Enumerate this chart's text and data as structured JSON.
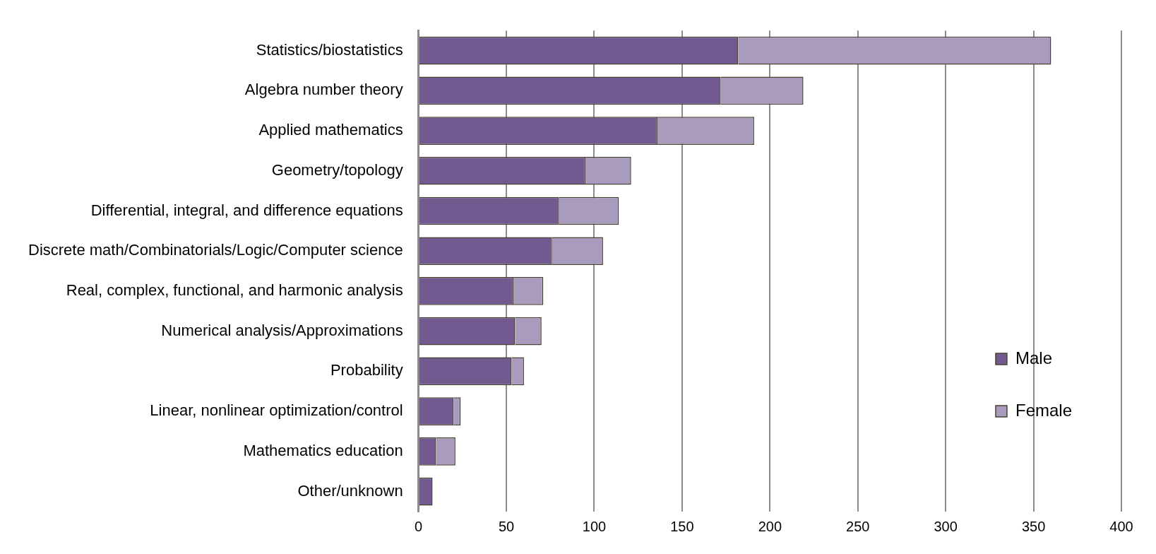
{
  "chart_data": {
    "type": "bar",
    "orientation": "horizontal",
    "stacked": true,
    "categories": [
      "Statistics/biostatistics",
      "Algebra number theory",
      "Applied mathematics",
      "Geometry/topology",
      "Differential, integral, and difference equations",
      "Discrete math/Combinatorials/Logic/Computer science",
      "Real, complex, functional, and harmonic analysis",
      "Numerical analysis/Approximations",
      "Probability",
      "Linear, nonlinear optimization/control",
      "Mathematics education",
      "Other/unknown"
    ],
    "series": [
      {
        "name": "Male",
        "color": "#725990",
        "values": [
          182,
          172,
          136,
          95,
          80,
          76,
          54,
          55,
          53,
          20,
          10,
          8
        ]
      },
      {
        "name": "Female",
        "color": "#a99bbd",
        "values": [
          178,
          47,
          55,
          26,
          34,
          29,
          17,
          15,
          7,
          4,
          11,
          0
        ]
      }
    ],
    "xlim": [
      0,
      400
    ],
    "xticks": [
      0,
      50,
      100,
      150,
      200,
      250,
      300,
      350,
      400
    ],
    "grid": "x",
    "legend": "bottom right"
  }
}
